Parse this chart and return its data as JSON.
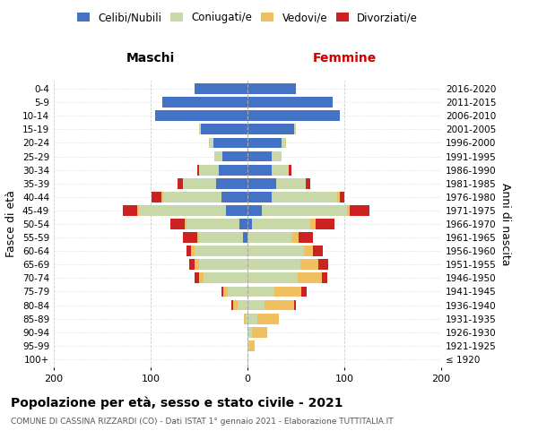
{
  "age_groups": [
    "100+",
    "95-99",
    "90-94",
    "85-89",
    "80-84",
    "75-79",
    "70-74",
    "65-69",
    "60-64",
    "55-59",
    "50-54",
    "45-49",
    "40-44",
    "35-39",
    "30-34",
    "25-29",
    "20-24",
    "15-19",
    "10-14",
    "5-9",
    "0-4"
  ],
  "birth_years": [
    "≤ 1920",
    "1921-1925",
    "1926-1930",
    "1931-1935",
    "1936-1940",
    "1941-1945",
    "1946-1950",
    "1951-1955",
    "1956-1960",
    "1961-1965",
    "1966-1970",
    "1971-1975",
    "1976-1980",
    "1981-1985",
    "1986-1990",
    "1991-1995",
    "1996-2000",
    "2001-2005",
    "2006-2010",
    "2011-2015",
    "2016-2020"
  ],
  "colors": {
    "celibi": "#4472c4",
    "coniugati": "#c8d8a8",
    "vedovi": "#f0c060",
    "divorziati": "#cc2222"
  },
  "maschi_celibi": [
    0,
    0,
    0,
    0,
    0,
    0,
    0,
    0,
    0,
    5,
    8,
    22,
    27,
    32,
    30,
    26,
    35,
    48,
    95,
    88,
    55
  ],
  "maschi_coniugati": [
    0,
    0,
    0,
    2,
    10,
    20,
    45,
    50,
    55,
    45,
    55,
    90,
    60,
    35,
    20,
    8,
    5,
    2,
    0,
    0,
    0
  ],
  "maschi_vedovi": [
    0,
    0,
    0,
    2,
    5,
    5,
    5,
    5,
    3,
    2,
    2,
    2,
    2,
    0,
    0,
    0,
    0,
    0,
    0,
    0,
    0
  ],
  "maschi_divorziati": [
    0,
    0,
    0,
    0,
    2,
    2,
    5,
    5,
    5,
    15,
    15,
    15,
    10,
    5,
    2,
    0,
    0,
    0,
    0,
    0,
    0
  ],
  "femmine_nubili": [
    0,
    0,
    0,
    0,
    0,
    0,
    0,
    0,
    0,
    0,
    5,
    15,
    25,
    30,
    25,
    25,
    35,
    48,
    95,
    88,
    50
  ],
  "femmine_coniugate": [
    0,
    2,
    5,
    10,
    18,
    28,
    52,
    55,
    58,
    45,
    60,
    88,
    68,
    30,
    18,
    10,
    5,
    2,
    0,
    0,
    0
  ],
  "femmine_vedove": [
    0,
    5,
    15,
    22,
    30,
    28,
    25,
    18,
    10,
    8,
    5,
    3,
    2,
    0,
    0,
    0,
    0,
    0,
    0,
    0,
    0
  ],
  "femmine_divorziate": [
    0,
    0,
    0,
    0,
    2,
    5,
    5,
    10,
    10,
    15,
    20,
    20,
    5,
    5,
    2,
    0,
    0,
    0,
    0,
    0,
    0
  ],
  "title": "Popolazione per età, sesso e stato civile - 2021",
  "subtitle": "COMUNE DI CASSINA RIZZARDI (CO) - Dati ISTAT 1° gennaio 2021 - Elaborazione TUTTITALIA.IT",
  "label_maschi": "Maschi",
  "label_femmine": "Femmine",
  "ylabel_left": "Fasce di età",
  "ylabel_right": "Anni di nascita",
  "legend_labels": [
    "Celibi/Nubili",
    "Coniugati/e",
    "Vedovi/e",
    "Divorziati/e"
  ],
  "xlim": 200
}
